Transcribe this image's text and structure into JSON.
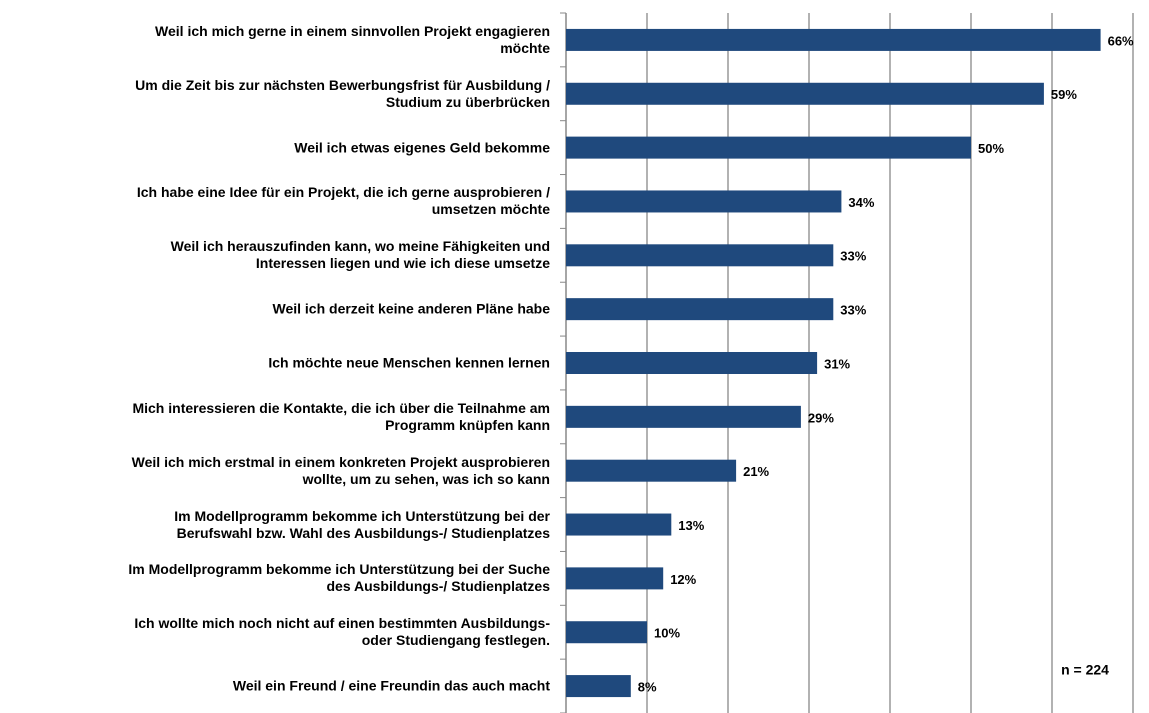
{
  "chart_data": {
    "type": "bar",
    "orientation": "horizontal",
    "categories": [
      "Weil ich mich gerne in einem sinnvollen Projekt engagieren\nmöchte",
      "Um die Zeit bis zur nächsten Bewerbungsfrist für Ausbildung /\nStudium zu überbrücken",
      "Weil ich etwas eigenes Geld bekomme",
      "Ich habe eine Idee für ein Projekt, die ich gerne ausprobieren /\numsetzen möchte",
      "Weil ich herauszufinden kann, wo meine Fähigkeiten und\nInteressen liegen und wie ich diese umsetze",
      "Weil ich derzeit keine anderen Pläne habe",
      "Ich möchte neue Menschen kennen lernen",
      "Mich interessieren die Kontakte, die ich über die Teilnahme am\nProgramm knüpfen kann",
      "Weil ich mich erstmal in einem konkreten Projekt ausprobieren\nwollte, um zu sehen, was ich so kann",
      "Im Modellprogramm bekomme ich Unterstützung bei der\nBerufswahl bzw. Wahl des Ausbildungs-/ Studienplatzes",
      "Im Modellprogramm bekomme ich Unterstützung bei der Suche\ndes Ausbildungs-/ Studienplatzes",
      "Ich wollte mich noch nicht auf einen bestimmten Ausbildungs-\noder Studiengang festlegen.",
      "Weil ein Freund / eine Freundin das auch macht"
    ],
    "values": [
      66,
      59,
      50,
      34,
      33,
      33,
      31,
      29,
      21,
      13,
      12,
      10,
      8
    ],
    "value_labels": [
      "66%",
      "59%",
      "50%",
      "34%",
      "33%",
      "33%",
      "31%",
      "29%",
      "21%",
      "13%",
      "12%",
      "10%",
      "8%"
    ],
    "color": "#1f497d",
    "xlim": [
      0,
      70
    ],
    "xticks": [
      0,
      10,
      20,
      30,
      40,
      50,
      60,
      70
    ],
    "grid": true,
    "annotation": "n = 224"
  }
}
